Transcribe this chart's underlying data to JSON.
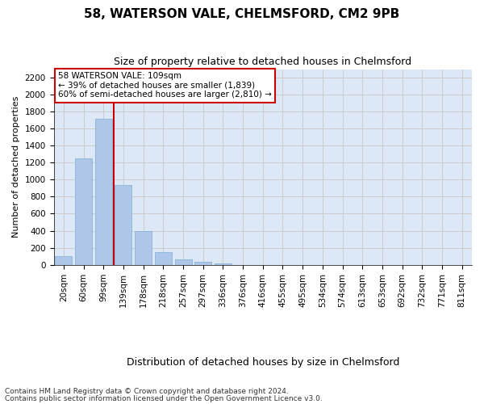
{
  "title_line1": "58, WATERSON VALE, CHELMSFORD, CM2 9PB",
  "title_line2": "Size of property relative to detached houses in Chelmsford",
  "xlabel": "Distribution of detached houses by size in Chelmsford",
  "ylabel": "Number of detached properties",
  "footnote1": "Contains HM Land Registry data © Crown copyright and database right 2024.",
  "footnote2": "Contains public sector information licensed under the Open Government Licence v3.0.",
  "annotation_title": "58 WATERSON VALE: 109sqm",
  "annotation_line2": "← 39% of detached houses are smaller (1,839)",
  "annotation_line3": "60% of semi-detached houses are larger (2,810) →",
  "bar_categories": [
    "20sqm",
    "60sqm",
    "99sqm",
    "139sqm",
    "178sqm",
    "218sqm",
    "257sqm",
    "297sqm",
    "336sqm",
    "376sqm",
    "416sqm",
    "455sqm",
    "495sqm",
    "534sqm",
    "574sqm",
    "613sqm",
    "653sqm",
    "692sqm",
    "732sqm",
    "771sqm",
    "811sqm"
  ],
  "bar_values": [
    100,
    1250,
    1720,
    940,
    400,
    145,
    65,
    35,
    20,
    0,
    0,
    0,
    0,
    0,
    0,
    0,
    0,
    0,
    0,
    0,
    0
  ],
  "bar_color": "#aec6e8",
  "bar_edge_color": "#7eafd4",
  "ylim": [
    0,
    2300
  ],
  "yticks": [
    0,
    200,
    400,
    600,
    800,
    1000,
    1200,
    1400,
    1600,
    1800,
    2000,
    2200
  ],
  "vline_after_bar": 2,
  "vline_color": "#cc0000",
  "grid_color": "#cccccc",
  "bg_color": "#dde8f7",
  "annotation_box_color": "#cc0000",
  "title1_fontsize": 11,
  "title2_fontsize": 9,
  "ylabel_fontsize": 8,
  "xlabel_fontsize": 9,
  "tick_fontsize": 7.5,
  "ann_fontsize": 7.5,
  "footnote_fontsize": 6.5
}
